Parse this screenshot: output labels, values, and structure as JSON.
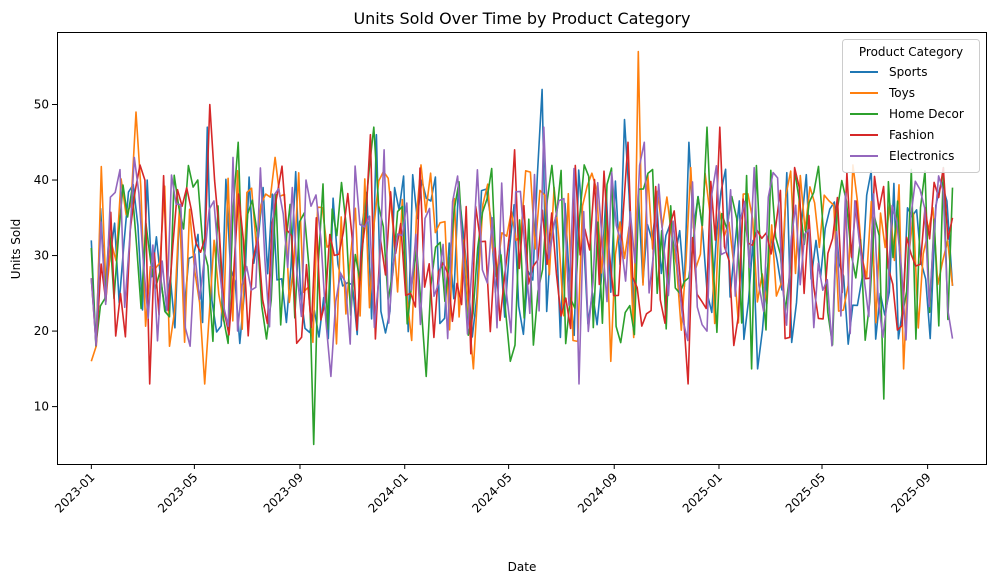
{
  "chart_data": {
    "type": "line",
    "title": "Units Sold Over Time by Product Category",
    "xlabel": "Date",
    "ylabel": "Units Sold",
    "x_range": [
      "2022-11-22",
      "2025-11-08"
    ],
    "ylim": [
      2.4,
      59.6
    ],
    "x_ticks": [
      "2023-01",
      "2023-05",
      "2023-09",
      "2024-01",
      "2024-05",
      "2024-09",
      "2025-01",
      "2025-05",
      "2025-09"
    ],
    "y_ticks": [
      10,
      20,
      30,
      40,
      50
    ],
    "grid": false,
    "legend": {
      "title": "Product Category",
      "placement": "top-right"
    },
    "series": [
      {
        "name": "Sports",
        "color": "#1f77b4",
        "x": [
          "2023-01-01",
          "2023-03-07",
          "2023-05-16",
          "2023-07-20",
          "2023-10-04",
          "2023-11-29",
          "2024-02-11",
          "2024-04-21",
          "2024-06-09",
          "2024-09-13",
          "2024-11-27",
          "2025-02-15",
          "2025-04-24",
          "2025-06-22",
          "2025-09-04",
          "2025-09-30"
        ],
        "values": [
          32,
          40,
          47,
          39,
          19,
          46,
          21,
          31,
          52,
          48,
          45,
          15,
          32,
          38,
          19,
          26
        ]
      },
      {
        "name": "Toys",
        "color": "#ff7f0e",
        "x": [
          "2023-01-01",
          "2023-02-22",
          "2023-04-02",
          "2023-05-13",
          "2023-08-03",
          "2023-11-10",
          "2024-01-20",
          "2024-03-21",
          "2024-06-12",
          "2024-08-28",
          "2024-09-29",
          "2024-12-27",
          "2025-03-20",
          "2025-06-06",
          "2025-08-04",
          "2025-09-30"
        ],
        "values": [
          16,
          49,
          18,
          13,
          43,
          22,
          42,
          15,
          38,
          16,
          57,
          21,
          38,
          42,
          15,
          26
        ]
      },
      {
        "name": "Home Decor",
        "color": "#2ca02c",
        "x": [
          "2023-01-01",
          "2023-02-28",
          "2023-05-05",
          "2023-06-21",
          "2023-09-17",
          "2023-11-26",
          "2024-01-26",
          "2024-03-26",
          "2024-05-03",
          "2024-07-28",
          "2024-10-21",
          "2024-12-18",
          "2025-02-08",
          "2025-04-16",
          "2025-07-12",
          "2025-09-30"
        ],
        "values": [
          31,
          23,
          40,
          45,
          5,
          47,
          14,
          31,
          16,
          42,
          25,
          47,
          15,
          37,
          11,
          39
        ]
      },
      {
        "name": "Fashion",
        "color": "#d62728",
        "x": [
          "2023-01-01",
          "2023-03-10",
          "2023-05-19",
          "2023-07-25",
          "2023-09-20",
          "2023-11-22",
          "2024-01-08",
          "2024-03-18",
          "2024-05-08",
          "2024-07-01",
          "2024-09-17",
          "2024-11-26",
          "2025-01-02",
          "2025-03-19",
          "2025-05-30",
          "2025-09-30"
        ],
        "values": [
          27,
          13,
          50,
          21,
          35,
          46,
          25,
          17,
          44,
          22,
          45,
          13,
          47,
          19,
          41,
          35
        ]
      },
      {
        "name": "Electronics",
        "color": "#9467bd",
        "x": [
          "2023-01-01",
          "2023-02-20",
          "2023-04-26",
          "2023-06-15",
          "2023-09-08",
          "2023-10-07",
          "2023-12-08",
          "2024-02-20",
          "2024-04-12",
          "2024-06-11",
          "2024-07-22",
          "2024-10-06",
          "2024-12-18",
          "2025-03-05",
          "2025-05-23",
          "2025-09-30"
        ],
        "values": [
          27,
          43,
          18,
          43,
          40,
          14,
          44,
          19,
          35,
          47,
          13,
          45,
          20,
          41,
          22,
          19
        ]
      }
    ]
  }
}
